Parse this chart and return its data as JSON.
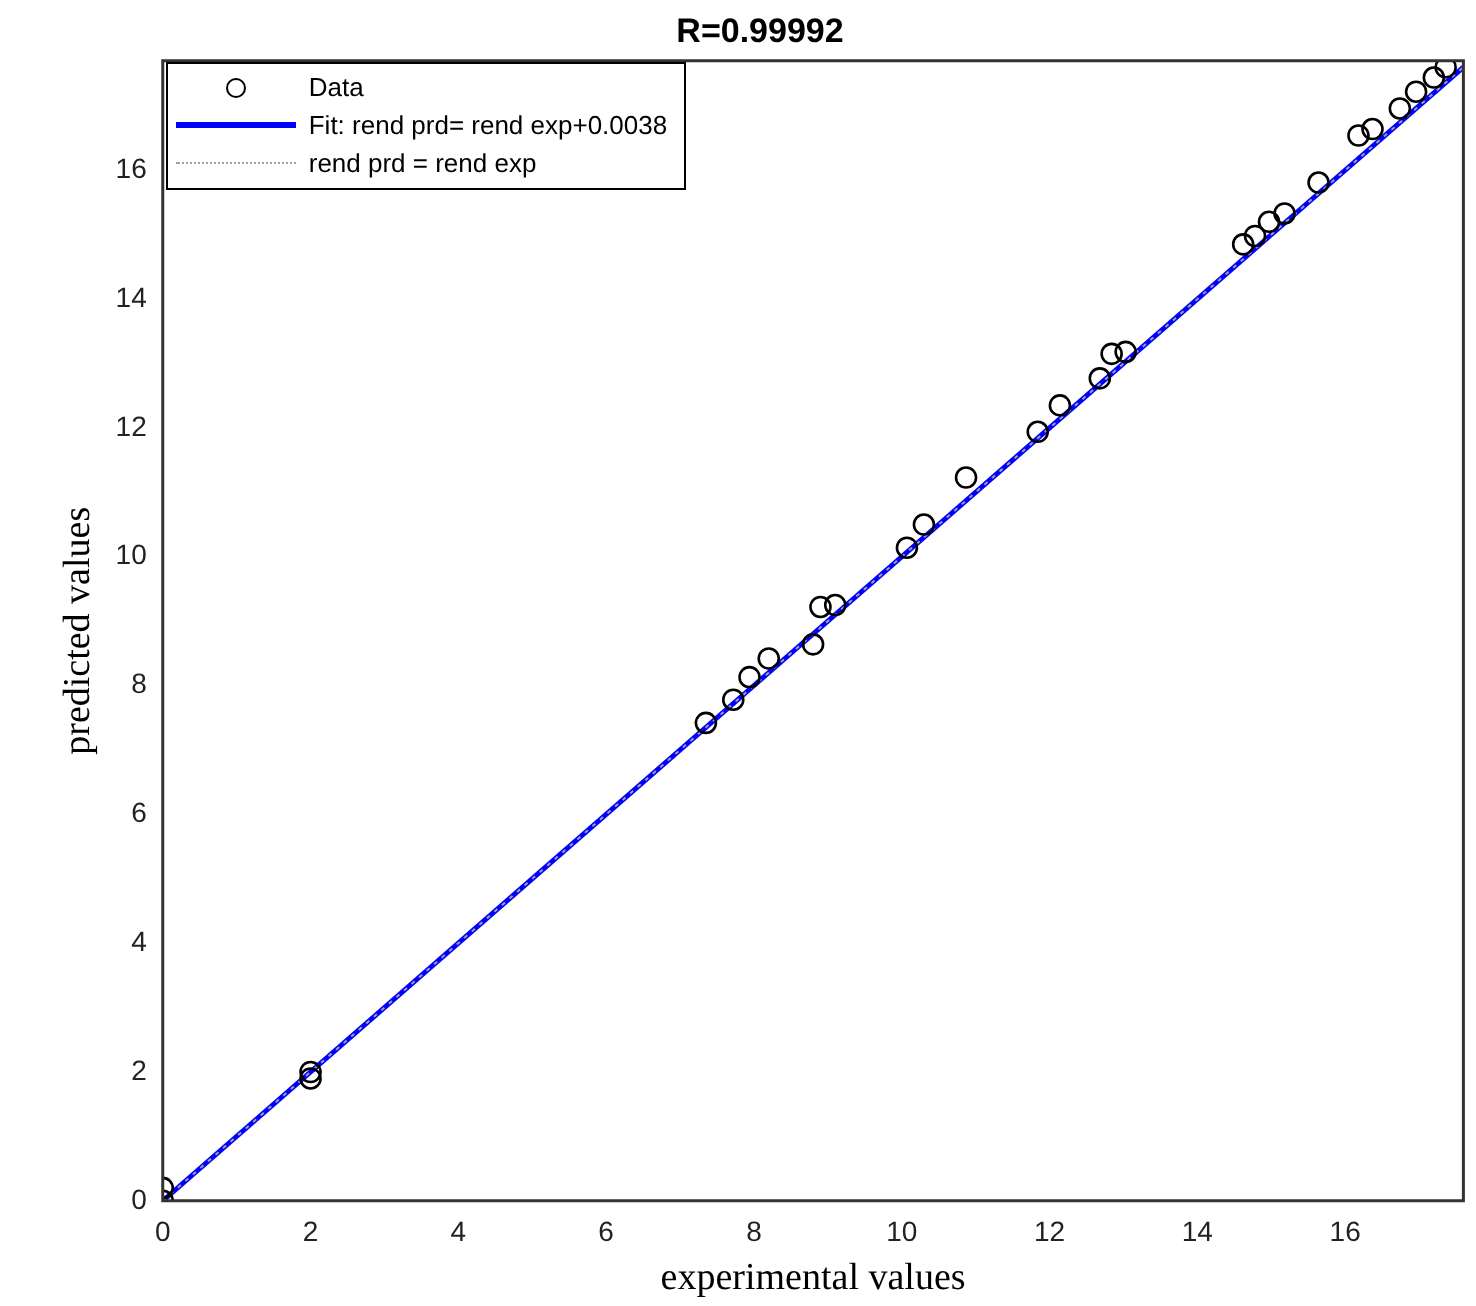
{
  "chart_data": {
    "type": "scatter",
    "title": "R=0.99992",
    "xlabel": "experimental values",
    "ylabel": "predicted values",
    "xlim": [
      0,
      17.6
    ],
    "ylim": [
      0,
      17.7
    ],
    "xticks": [
      0,
      2,
      4,
      6,
      8,
      10,
      12,
      14,
      16
    ],
    "yticks": [
      0,
      2,
      4,
      6,
      8,
      10,
      12,
      14,
      16
    ],
    "grid": false,
    "legend": "top left",
    "series": [
      {
        "name": "Data",
        "type": "scatter",
        "marker": "circle",
        "color": "#000000",
        "x": [
          0,
          0,
          2,
          2,
          7.35,
          7.72,
          7.94,
          8.2,
          8.8,
          8.9,
          9.1,
          10.07,
          10.3,
          10.87,
          11.84,
          12.14,
          12.68,
          12.84,
          13.03,
          14.62,
          14.78,
          14.97,
          15.18,
          15.64,
          16.18,
          16.37,
          16.74,
          16.96,
          17.2,
          17.36
        ],
        "values": [
          0,
          0.2,
          2.0,
          1.9,
          7.42,
          7.78,
          8.13,
          8.42,
          8.64,
          9.22,
          9.25,
          10.14,
          10.5,
          11.23,
          11.94,
          12.35,
          12.77,
          13.15,
          13.18,
          14.85,
          14.98,
          15.2,
          15.33,
          15.81,
          16.54,
          16.64,
          16.96,
          17.22,
          17.44,
          17.6
        ]
      },
      {
        "name": "Fit: rend prd= rend exp+0.0038",
        "type": "line",
        "marker": "none",
        "line_style": "solid",
        "color": "#0000ff",
        "x": [
          0,
          17.6
        ],
        "values": [
          0,
          17.6
        ]
      },
      {
        "name": "rend prd = rend exp",
        "type": "line",
        "marker": "none",
        "line_style": "dotted",
        "color": "#a0a0a0",
        "x": [
          0,
          17.6
        ],
        "values": [
          0,
          17.6
        ]
      }
    ]
  }
}
